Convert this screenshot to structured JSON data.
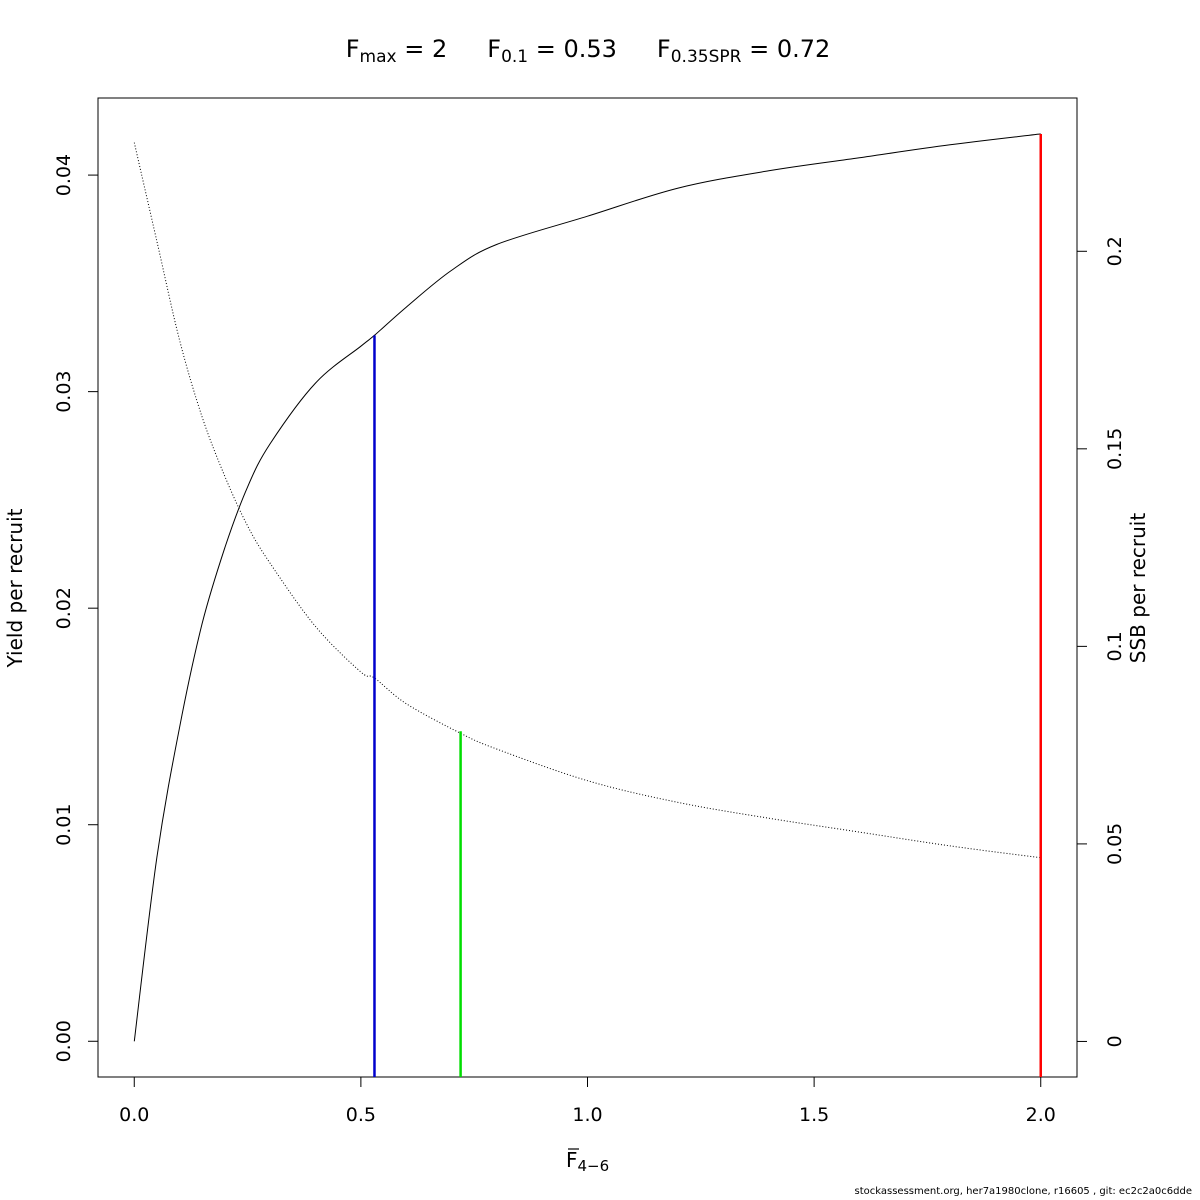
{
  "chart_data": {
    "type": "line",
    "title": {
      "fmax": {
        "main": "F",
        "sub": "max",
        "eq": " = ",
        "value": "2"
      },
      "f01": {
        "main": "F",
        "sub": "0.1",
        "eq": " = ",
        "value": "0.53"
      },
      "fspr": {
        "main": "F",
        "sub": "0.35SPR",
        "eq": " = ",
        "value": "0.72"
      }
    },
    "xlabel": {
      "main": "F",
      "sub": "4−6"
    },
    "ylabel_left": "Yield per recruit",
    "ylabel_right": "SSB per recruit",
    "xlim": [
      -0.08,
      2.08
    ],
    "ylim_left": [
      -0.00165,
      0.04356
    ],
    "ylim_right": [
      -0.009,
      0.2388
    ],
    "x_ticks": [
      {
        "value": 0,
        "label": "0.0"
      },
      {
        "value": 0.5,
        "label": "0.5"
      },
      {
        "value": 1,
        "label": "1.0"
      },
      {
        "value": 1.5,
        "label": "1.5"
      },
      {
        "value": 2,
        "label": "2.0"
      }
    ],
    "y_ticks_left": [
      {
        "value": 0,
        "label": "0.00"
      },
      {
        "value": 0.01,
        "label": "0.01"
      },
      {
        "value": 0.02,
        "label": "0.02"
      },
      {
        "value": 0.03,
        "label": "0.03"
      },
      {
        "value": 0.04,
        "label": "0.04"
      }
    ],
    "y_ticks_right": [
      {
        "value": 0,
        "label": "0"
      },
      {
        "value": 0.05,
        "label": "0.05"
      },
      {
        "value": 0.1,
        "label": "0.1"
      },
      {
        "value": 0.15,
        "label": "0.15"
      },
      {
        "value": 0.2,
        "label": "0.2"
      }
    ],
    "series": [
      {
        "axis": "left",
        "style": "solid",
        "color": "#000000",
        "x": [
          0,
          0.05,
          0.1,
          0.15,
          0.2,
          0.25,
          0.3,
          0.4,
          0.5,
          0.53,
          0.6,
          0.7,
          0.8,
          1.0,
          1.2,
          1.4,
          1.6,
          1.8,
          2.0
        ],
        "y": [
          0,
          0.0085,
          0.0145,
          0.0193,
          0.0228,
          0.0256,
          0.0276,
          0.0304,
          0.0321,
          0.0326,
          0.0339,
          0.0356,
          0.0368,
          0.0381,
          0.0394,
          0.0402,
          0.0408,
          0.0414,
          0.0419
        ]
      },
      {
        "axis": "right",
        "style": "dotted",
        "color": "#000000",
        "x": [
          0,
          0.05,
          0.1,
          0.15,
          0.2,
          0.25,
          0.3,
          0.4,
          0.5,
          0.53,
          0.6,
          0.72,
          0.8,
          1.0,
          1.2,
          1.4,
          1.6,
          1.8,
          2.0
        ],
        "y": [
          0.2275,
          0.2025,
          0.1775,
          0.158,
          0.143,
          0.1305,
          0.121,
          0.105,
          0.0935,
          0.092,
          0.0855,
          0.078,
          0.074,
          0.066,
          0.0605,
          0.0565,
          0.053,
          0.0495,
          0.0465
        ]
      }
    ],
    "reference_lines": [
      {
        "name": "F0.1",
        "x": 0.53,
        "axis": "left",
        "y_top": 0.0326,
        "color": "#0000cc"
      },
      {
        "name": "F0.35SPR",
        "x": 0.72,
        "axis": "right",
        "y_top": 0.0785,
        "color": "#00dd00"
      },
      {
        "name": "Fmax",
        "x": 2.0,
        "axis": "left",
        "y_top": 0.0419,
        "color": "#ff0000"
      }
    ]
  },
  "footer": "stockassessment.org, her7a1980clone, r16605 , git: ec2c2a0c6dde"
}
